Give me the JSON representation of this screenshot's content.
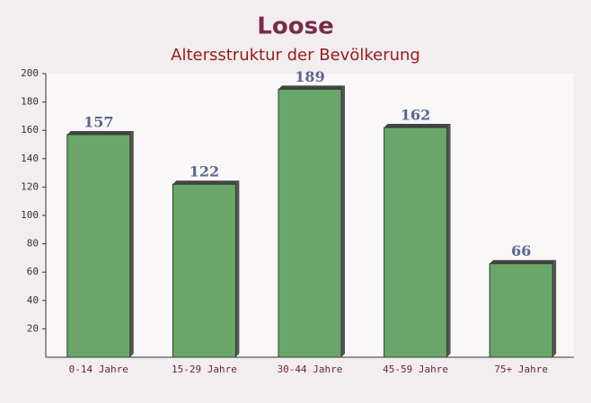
{
  "chart_data": {
    "type": "bar",
    "title": "Loose",
    "subtitle": "Altersstruktur der Bevölkerung",
    "categories": [
      "0-14 Jahre",
      "15-29 Jahre",
      "30-44 Jahre",
      "45-59 Jahre",
      "75+ Jahre"
    ],
    "values": [
      157,
      122,
      189,
      162,
      66
    ],
    "color": "#6aa66a",
    "ylim": [
      0,
      200
    ],
    "yticks": [
      20,
      40,
      60,
      80,
      100,
      120,
      140,
      160,
      180,
      200
    ],
    "grid": false
  }
}
